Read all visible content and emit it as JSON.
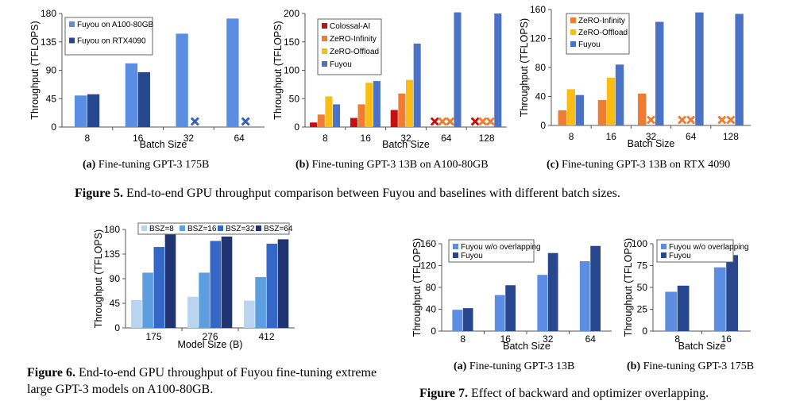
{
  "colors": {
    "light_blue": "#5b8ee2",
    "dark_blue": "#27488f",
    "red": "#c80f0f",
    "orange": "#ef7d31",
    "yellow": "#fbbd13",
    "fuyou_blue": "#4a73c8",
    "bsz8": "#b9d4ef",
    "bsz16": "#5d9fde",
    "bsz32": "#3567c6",
    "bsz64": "#1f3470",
    "marker_blue": "#3a60b0",
    "marker_red": "#c80f0f",
    "marker_orange": "#ef7d31"
  },
  "fig5": {
    "caption_label": "Figure 5.",
    "caption_text": " End-to-end GPU throughput comparison between Fuyou and baselines with different batch sizes."
  },
  "fig6": {
    "caption_label": "Figure 6.",
    "caption_text": " End-to-end GPU throughput of Fuyou fine-tuning extreme large GPT-3 models on A100-80GB."
  },
  "fig7": {
    "caption_label": "Figure 7.",
    "caption_text": " Effect of backward and optimizer overlapping."
  },
  "chart_data": [
    {
      "id": "5a",
      "type": "bar",
      "caption_label": "(a)",
      "caption_text": " Fine-tuning GPT-3 175B",
      "xlabel": "Batch Size",
      "ylabel": "Throughput (TFLOPS)",
      "ylim": [
        0,
        180
      ],
      "yticks": [
        0,
        45,
        90,
        135,
        180
      ],
      "categories": [
        "8",
        "16",
        "32",
        "64"
      ],
      "legend_position": "top-left",
      "series": [
        {
          "name": "Fuyou on A100-80GB",
          "color": "light_blue",
          "values": [
            50,
            101,
            148,
            172
          ]
        },
        {
          "name": "Fuyou on RTX4090",
          "color": "dark_blue",
          "values": [
            52,
            87,
            null,
            null
          ]
        }
      ],
      "markers": [
        {
          "category": 2,
          "series": 1,
          "symbol": "x",
          "color": "marker_blue"
        },
        {
          "category": 3,
          "series": 1,
          "symbol": "x",
          "color": "marker_blue"
        }
      ]
    },
    {
      "id": "5b",
      "type": "bar",
      "caption_label": "(b)",
      "caption_text": " Fine-tuning GPT-3 13B on A100-80GB",
      "xlabel": "Batch Size",
      "ylabel": "Throughput (TFLOPS)",
      "ylim": [
        0,
        200
      ],
      "yticks": [
        0,
        50,
        100,
        150,
        200
      ],
      "categories": [
        "8",
        "16",
        "32",
        "64",
        "128"
      ],
      "legend_position": "top-left",
      "series": [
        {
          "name": "Colossal-AI",
          "color": "red",
          "values": [
            8,
            16,
            30,
            null,
            null
          ]
        },
        {
          "name": "ZeRO-Infinity",
          "color": "orange",
          "values": [
            22,
            40,
            59,
            null,
            null
          ]
        },
        {
          "name": "ZeRO-Offload",
          "color": "yellow",
          "values": [
            54,
            78,
            83,
            null,
            null
          ]
        },
        {
          "name": "Fuyou",
          "color": "fuyou_blue",
          "values": [
            40,
            81,
            147,
            202,
            200
          ]
        }
      ],
      "markers": [
        {
          "category": 3,
          "series": 0,
          "symbol": "x",
          "color": "marker_red"
        },
        {
          "category": 3,
          "series": 1,
          "symbol": "x",
          "color": "marker_orange"
        },
        {
          "category": 3,
          "series": 2,
          "symbol": "x",
          "color": "marker_orange"
        },
        {
          "category": 4,
          "series": 0,
          "symbol": "x",
          "color": "marker_red"
        },
        {
          "category": 4,
          "series": 1,
          "symbol": "x",
          "color": "marker_orange"
        },
        {
          "category": 4,
          "series": 2,
          "symbol": "x",
          "color": "marker_orange"
        }
      ]
    },
    {
      "id": "5c",
      "type": "bar",
      "caption_label": "(c)",
      "caption_text": " Fine-tuning GPT-3 13B on RTX 4090",
      "xlabel": "Batch Size",
      "ylabel": "Throughput (TFLOPS)",
      "ylim": [
        0,
        160
      ],
      "yticks": [
        0,
        40,
        80,
        120,
        160
      ],
      "categories": [
        "8",
        "16",
        "32",
        "64",
        "128"
      ],
      "legend_position": "top-left",
      "series": [
        {
          "name": "ZeRO-Infinity",
          "color": "orange",
          "values": [
            21,
            35,
            44,
            null,
            null
          ]
        },
        {
          "name": "ZeRO-Offload",
          "color": "yellow",
          "values": [
            50,
            66,
            null,
            null,
            null
          ]
        },
        {
          "name": "Fuyou",
          "color": "fuyou_blue",
          "values": [
            42,
            84,
            143,
            156,
            154
          ]
        }
      ],
      "markers": [
        {
          "category": 2,
          "series": 1,
          "symbol": "x",
          "color": "marker_orange"
        },
        {
          "category": 3,
          "series": 0,
          "symbol": "x",
          "color": "marker_orange"
        },
        {
          "category": 3,
          "series": 1,
          "symbol": "x",
          "color": "marker_orange"
        },
        {
          "category": 4,
          "series": 0,
          "symbol": "x",
          "color": "marker_orange"
        },
        {
          "category": 4,
          "series": 1,
          "symbol": "x",
          "color": "marker_orange"
        }
      ]
    },
    {
      "id": "6",
      "type": "bar",
      "caption_label": "",
      "caption_text": "",
      "xlabel": "Model Size (B)",
      "ylabel": "Throughput (TFLOPS)",
      "ylim": [
        0,
        180
      ],
      "yticks": [
        0,
        45,
        90,
        135,
        180
      ],
      "categories": [
        "175",
        "276",
        "412"
      ],
      "legend_position": "top",
      "series": [
        {
          "name": "BSZ=8",
          "color": "bsz8",
          "values": [
            51,
            57,
            50
          ]
        },
        {
          "name": "BSZ=16",
          "color": "bsz16",
          "values": [
            101,
            101,
            93
          ]
        },
        {
          "name": "BSZ=32",
          "color": "bsz32",
          "values": [
            148,
            159,
            154
          ]
        },
        {
          "name": "BSZ=64",
          "color": "bsz64",
          "values": [
            172,
            167,
            162
          ]
        }
      ],
      "markers": []
    },
    {
      "id": "7a",
      "type": "bar",
      "caption_label": "(a)",
      "caption_text": " Fine-tuning GPT-3 13B",
      "xlabel": "Batch Size",
      "ylabel": "Throughput (TFLOPS)",
      "ylim": [
        0,
        160
      ],
      "yticks": [
        0,
        40,
        80,
        120,
        160
      ],
      "categories": [
        "8",
        "16",
        "32",
        "64"
      ],
      "legend_position": "top-left",
      "series": [
        {
          "name": "Fuyou w/o overlapping",
          "color": "light_blue",
          "values": [
            39,
            66,
            103,
            128
          ]
        },
        {
          "name": "Fuyou",
          "color": "dark_blue",
          "values": [
            42,
            84,
            143,
            156
          ]
        }
      ],
      "markers": []
    },
    {
      "id": "7b",
      "type": "bar",
      "caption_label": "(b)",
      "caption_text": " Fine-tuning GPT-3 175B",
      "xlabel": "Batch Size",
      "ylabel": "Throughput (TFLOPS)",
      "ylim": [
        0,
        100
      ],
      "yticks": [
        0,
        25,
        50,
        75,
        100
      ],
      "categories": [
        "8",
        "16"
      ],
      "legend_position": "top-left",
      "series": [
        {
          "name": "Fuyou w/o overlapping",
          "color": "light_blue",
          "values": [
            45,
            73
          ]
        },
        {
          "name": "Fuyou",
          "color": "dark_blue",
          "values": [
            52,
            87
          ]
        }
      ],
      "markers": []
    }
  ]
}
